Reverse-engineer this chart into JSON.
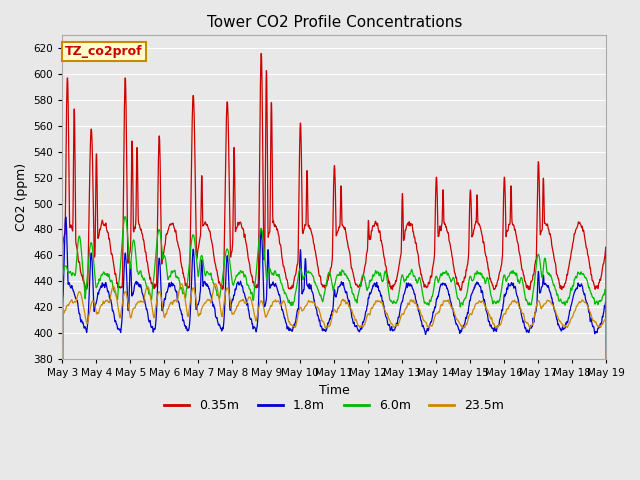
{
  "title": "Tower CO2 Profile Concentrations",
  "xlabel": "Time",
  "ylabel": "CO2 (ppm)",
  "ylim": [
    380,
    630
  ],
  "yticks": [
    380,
    400,
    420,
    440,
    460,
    480,
    500,
    520,
    540,
    560,
    580,
    600,
    620
  ],
  "fig_bg_color": "#e8e8e8",
  "plot_bg_color": "#e8e8e8",
  "series": [
    "0.35m",
    "1.8m",
    "6.0m",
    "23.5m"
  ],
  "colors": [
    "#cc0000",
    "#0000cc",
    "#00bb00",
    "#cc8800"
  ],
  "legend_box_facecolor": "#ffffcc",
  "legend_box_edgecolor": "#cc8800",
  "annotation_text": "TZ_co2prof",
  "annotation_color": "#cc0000",
  "n_days": 16,
  "ppd": 144,
  "start_day": 3,
  "grid_color": "#ffffff",
  "spine_color": "#aaaaaa"
}
